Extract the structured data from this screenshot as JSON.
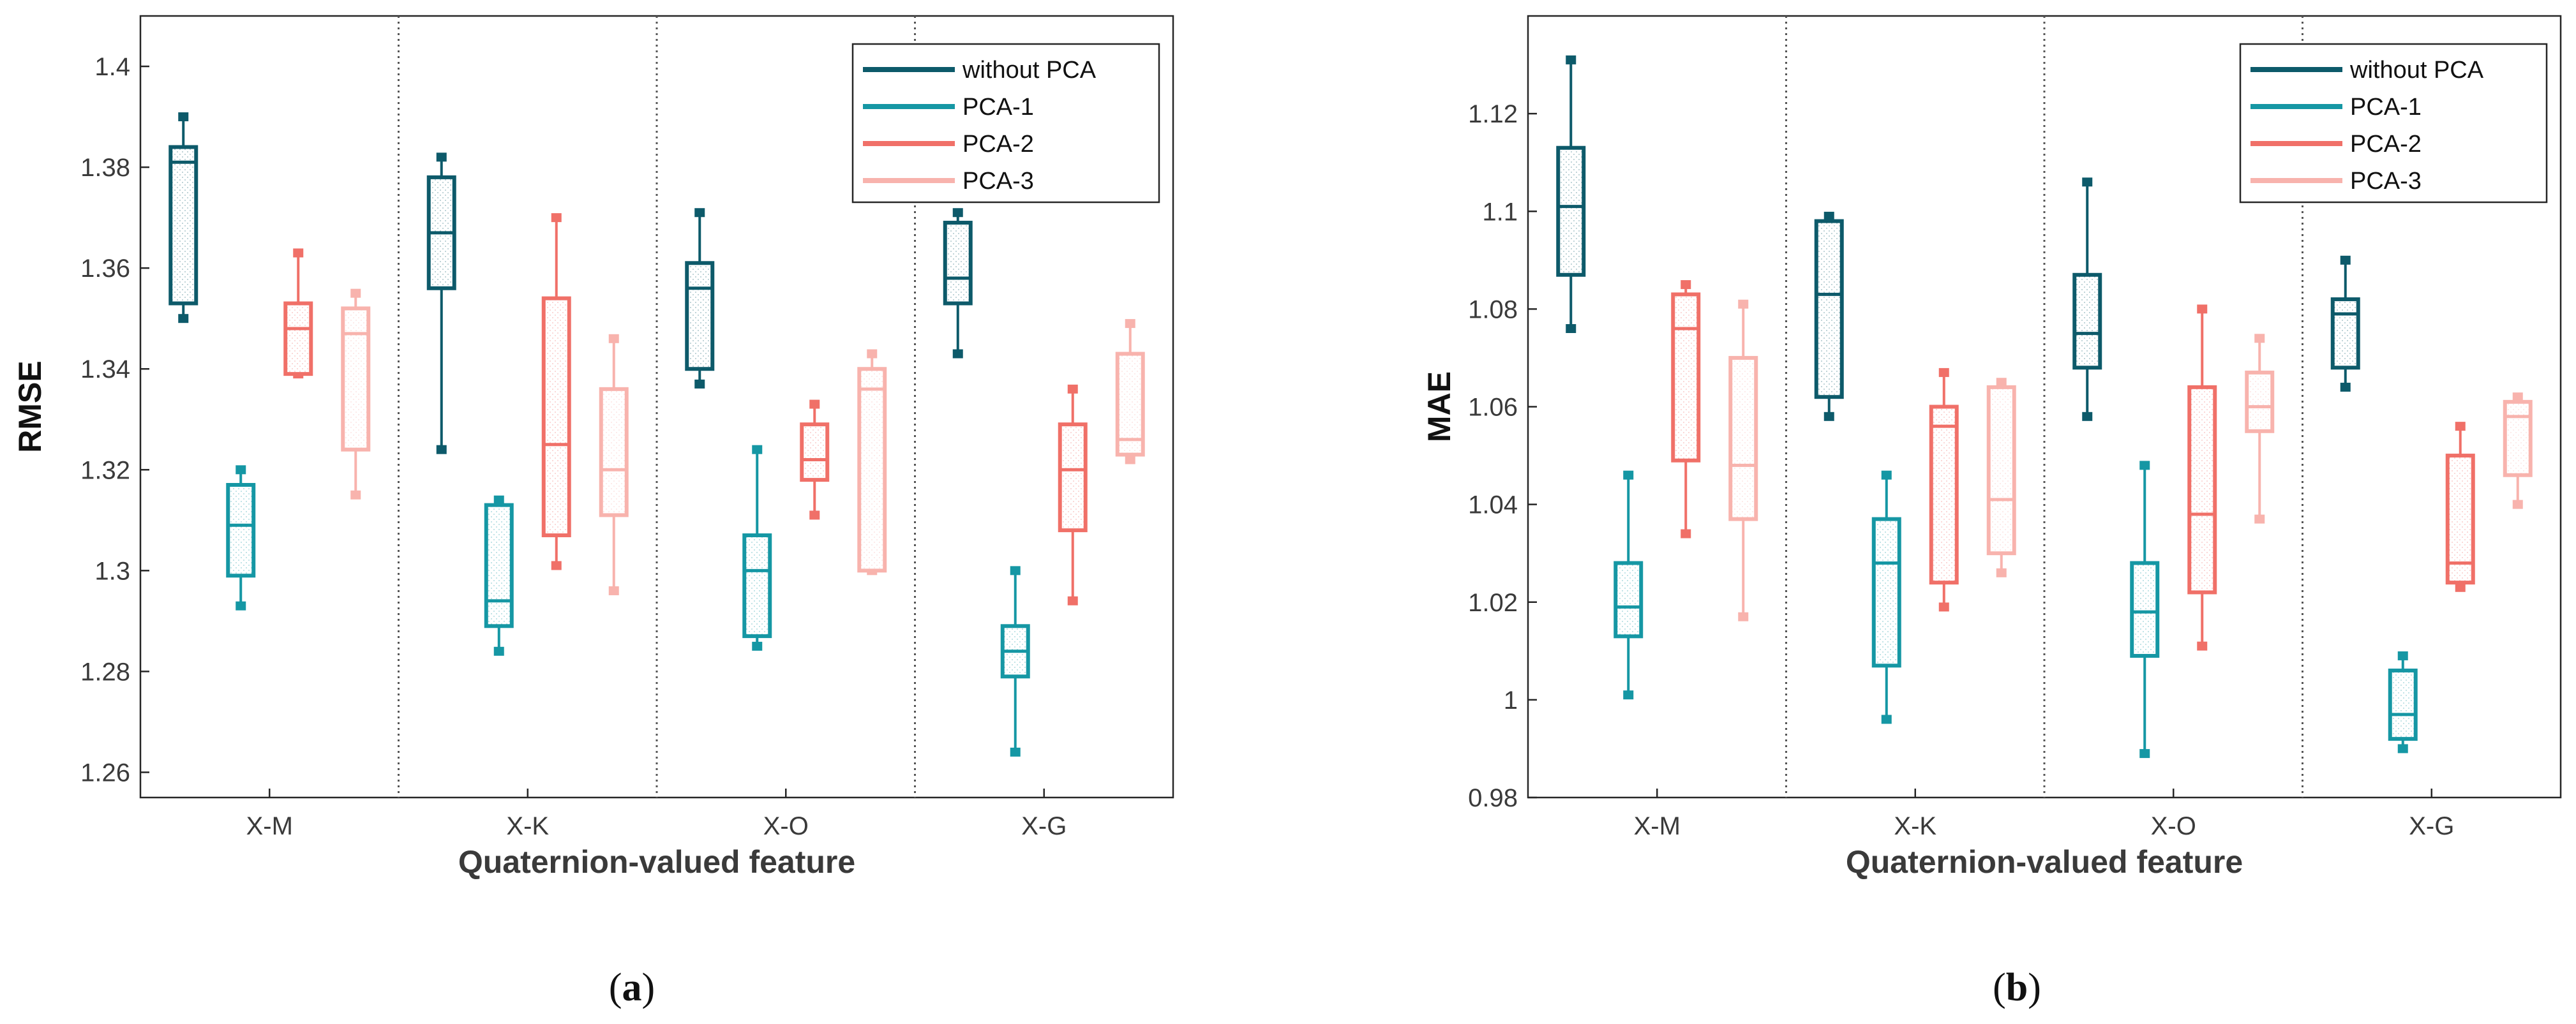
{
  "chart_data": [
    {
      "type": "box",
      "panel_label": "(a)",
      "panel_letter": "a",
      "ylabel": "RMSE",
      "xlabel": "Quaternion-valued feature",
      "ylim": [
        1.255,
        1.41
      ],
      "yticks": [
        1.26,
        1.28,
        1.3,
        1.32,
        1.34,
        1.36,
        1.38,
        1.4
      ],
      "ytick_labels": [
        "1.26",
        "1.28",
        "1.3",
        "1.32",
        "1.34",
        "1.36",
        "1.38",
        "1.4"
      ],
      "categories": [
        "X-M",
        "X-K",
        "X-O",
        "X-G"
      ],
      "legend_position": "top-right",
      "series": [
        {
          "name": "without PCA",
          "color": "#0d5a6a",
          "boxes": [
            {
              "min": 1.35,
              "q1": 1.353,
              "median": 1.381,
              "q3": 1.384,
              "max": 1.39
            },
            {
              "min": 1.324,
              "q1": 1.356,
              "median": 1.367,
              "q3": 1.378,
              "max": 1.382
            },
            {
              "min": 1.337,
              "q1": 1.34,
              "median": 1.356,
              "q3": 1.361,
              "max": 1.371
            },
            {
              "min": 1.343,
              "q1": 1.353,
              "median": 1.358,
              "q3": 1.369,
              "max": 1.371
            }
          ]
        },
        {
          "name": "PCA-1",
          "color": "#1597a4",
          "boxes": [
            {
              "min": 1.293,
              "q1": 1.299,
              "median": 1.309,
              "q3": 1.317,
              "max": 1.32
            },
            {
              "min": 1.284,
              "q1": 1.289,
              "median": 1.294,
              "q3": 1.313,
              "max": 1.314
            },
            {
              "min": 1.285,
              "q1": 1.287,
              "median": 1.3,
              "q3": 1.307,
              "max": 1.324
            },
            {
              "min": 1.264,
              "q1": 1.279,
              "median": 1.284,
              "q3": 1.289,
              "max": 1.3
            }
          ]
        },
        {
          "name": "PCA-2",
          "color": "#f07068",
          "boxes": [
            {
              "min": 1.339,
              "q1": 1.339,
              "median": 1.348,
              "q3": 1.353,
              "max": 1.363
            },
            {
              "min": 1.301,
              "q1": 1.307,
              "median": 1.325,
              "q3": 1.354,
              "max": 1.37
            },
            {
              "min": 1.311,
              "q1": 1.318,
              "median": 1.322,
              "q3": 1.329,
              "max": 1.333
            },
            {
              "min": 1.294,
              "q1": 1.308,
              "median": 1.32,
              "q3": 1.329,
              "max": 1.336
            }
          ]
        },
        {
          "name": "PCA-3",
          "color": "#f8b3ad",
          "boxes": [
            {
              "min": 1.315,
              "q1": 1.324,
              "median": 1.347,
              "q3": 1.352,
              "max": 1.355
            },
            {
              "min": 1.296,
              "q1": 1.311,
              "median": 1.32,
              "q3": 1.336,
              "max": 1.346
            },
            {
              "min": 1.3,
              "q1": 1.3,
              "median": 1.336,
              "q3": 1.34,
              "max": 1.343
            },
            {
              "min": 1.322,
              "q1": 1.323,
              "median": 1.326,
              "q3": 1.343,
              "max": 1.349
            }
          ]
        }
      ]
    },
    {
      "type": "box",
      "panel_label": "(b)",
      "panel_letter": "b",
      "ylabel": "MAE",
      "xlabel": "Quaternion-valued feature",
      "ylim": [
        0.98,
        1.14
      ],
      "yticks": [
        0.98,
        1.0,
        1.02,
        1.04,
        1.06,
        1.08,
        1.1,
        1.12
      ],
      "ytick_labels": [
        "0.98",
        "1",
        "1.02",
        "1.04",
        "1.06",
        "1.08",
        "1.1",
        "1.12"
      ],
      "categories": [
        "X-M",
        "X-K",
        "X-O",
        "X-G"
      ],
      "legend_position": "top-right",
      "series": [
        {
          "name": "without PCA",
          "color": "#0d5a6a",
          "boxes": [
            {
              "min": 1.076,
              "q1": 1.087,
              "median": 1.101,
              "q3": 1.113,
              "max": 1.131
            },
            {
              "min": 1.058,
              "q1": 1.062,
              "median": 1.083,
              "q3": 1.098,
              "max": 1.099
            },
            {
              "min": 1.058,
              "q1": 1.068,
              "median": 1.075,
              "q3": 1.087,
              "max": 1.106
            },
            {
              "min": 1.064,
              "q1": 1.068,
              "median": 1.079,
              "q3": 1.082,
              "max": 1.09
            }
          ]
        },
        {
          "name": "PCA-1",
          "color": "#1597a4",
          "boxes": [
            {
              "min": 1.001,
              "q1": 1.013,
              "median": 1.019,
              "q3": 1.028,
              "max": 1.046
            },
            {
              "min": 0.996,
              "q1": 1.007,
              "median": 1.028,
              "q3": 1.037,
              "max": 1.046
            },
            {
              "min": 0.989,
              "q1": 1.009,
              "median": 1.018,
              "q3": 1.028,
              "max": 1.048
            },
            {
              "min": 0.99,
              "q1": 0.992,
              "median": 0.997,
              "q3": 1.006,
              "max": 1.009
            }
          ]
        },
        {
          "name": "PCA-2",
          "color": "#f07068",
          "boxes": [
            {
              "min": 1.034,
              "q1": 1.049,
              "median": 1.076,
              "q3": 1.083,
              "max": 1.085
            },
            {
              "min": 1.019,
              "q1": 1.024,
              "median": 1.056,
              "q3": 1.06,
              "max": 1.067
            },
            {
              "min": 1.011,
              "q1": 1.022,
              "median": 1.038,
              "q3": 1.064,
              "max": 1.08
            },
            {
              "min": 1.023,
              "q1": 1.024,
              "median": 1.028,
              "q3": 1.05,
              "max": 1.056
            }
          ]
        },
        {
          "name": "PCA-3",
          "color": "#f8b3ad",
          "boxes": [
            {
              "min": 1.017,
              "q1": 1.037,
              "median": 1.048,
              "q3": 1.07,
              "max": 1.081
            },
            {
              "min": 1.026,
              "q1": 1.03,
              "median": 1.041,
              "q3": 1.064,
              "max": 1.065
            },
            {
              "min": 1.037,
              "q1": 1.055,
              "median": 1.06,
              "q3": 1.067,
              "max": 1.074
            },
            {
              "min": 1.04,
              "q1": 1.046,
              "median": 1.058,
              "q3": 1.061,
              "max": 1.062
            }
          ]
        }
      ]
    }
  ]
}
